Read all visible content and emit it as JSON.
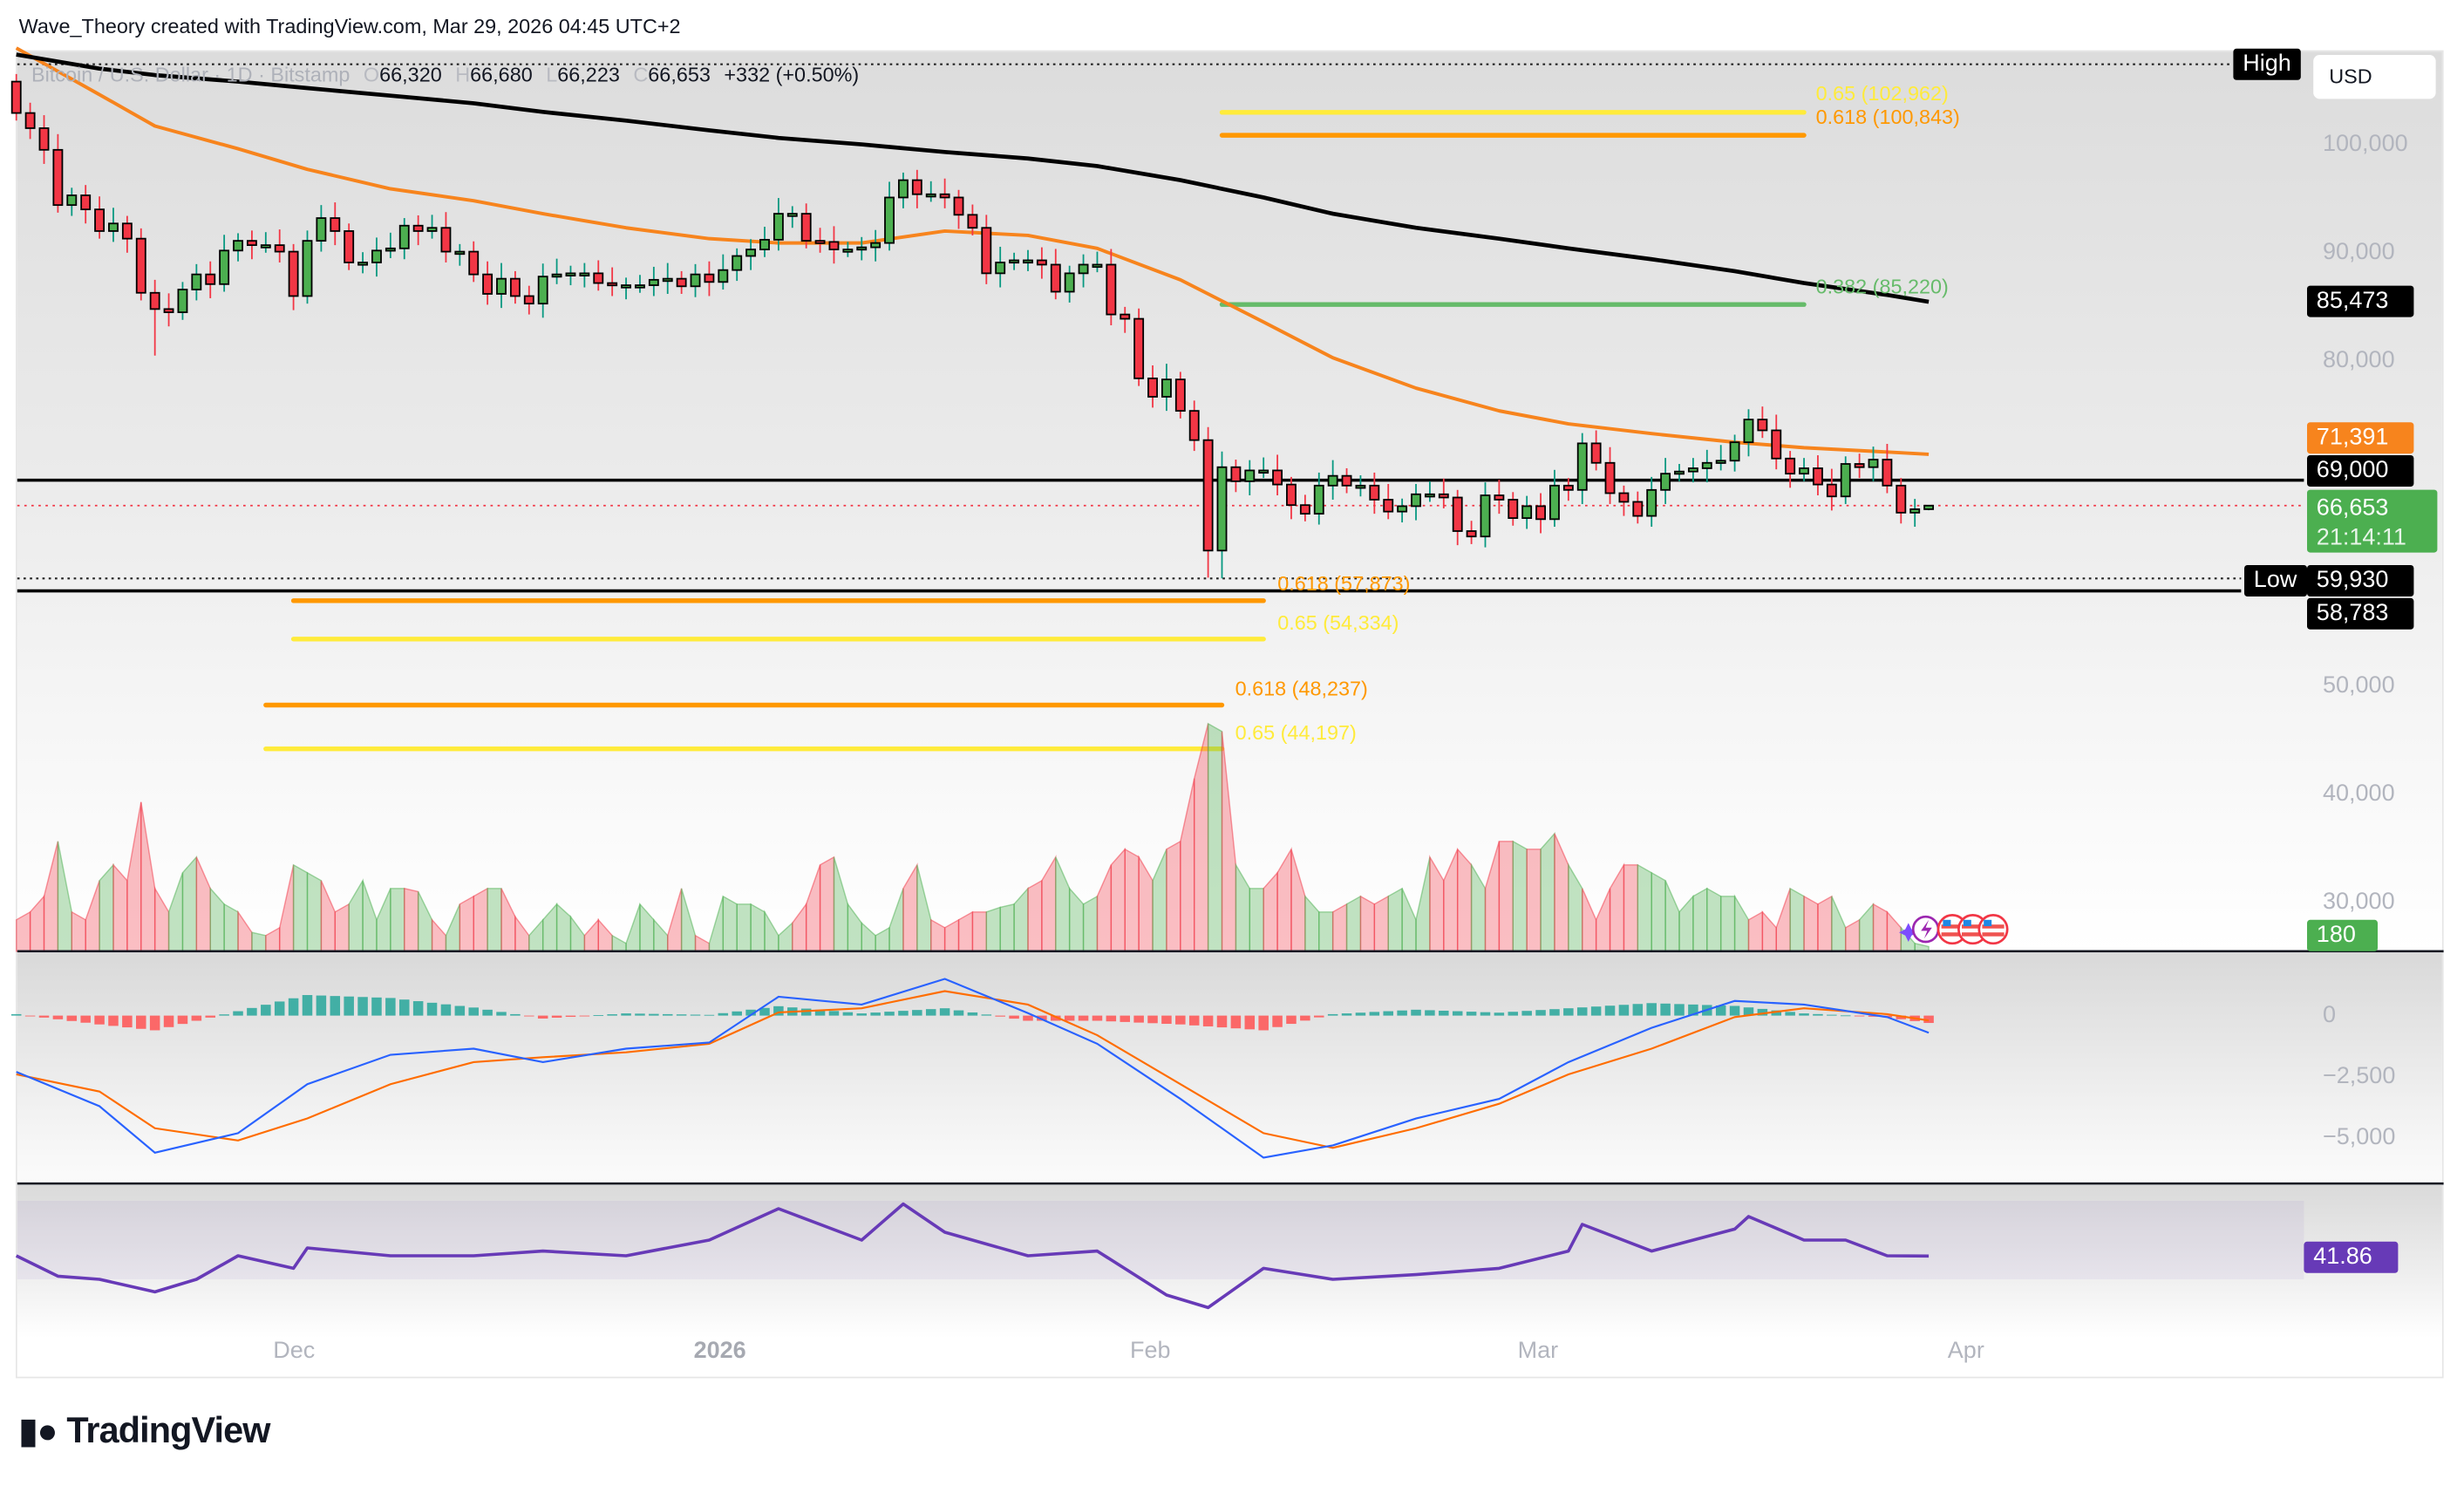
{
  "credit": "Wave_Theory created with TradingView.com, Mar 29, 2026 04:45 UTC+2",
  "legend": {
    "symbol": "Bitcoin / U.S. Dollar · 1D · Bitstamp",
    "o_label": "O",
    "o": "66,320",
    "h_label": "H",
    "h": "66,680",
    "l_label": "L",
    "l": "66,223",
    "c_label": "C",
    "c": "66,653",
    "change": "+332 (+0.50%)"
  },
  "currency_button": "USD",
  "markers": {
    "high": "High",
    "low": "Low"
  },
  "price_axis": [
    "100,000",
    "90,000",
    "80,000",
    "50,000",
    "40,000",
    "30,000"
  ],
  "macd_axis": [
    "0",
    "−2,500",
    "−5,000"
  ],
  "time_axis": [
    "Dec",
    "2026",
    "Feb",
    "Mar",
    "Apr"
  ],
  "badges": {
    "ma200": "85,473",
    "ma50": "71,391",
    "level": "69,000",
    "last_price": "66,653",
    "countdown": "21:14:11",
    "low_value": "59,930",
    "support": "58,783",
    "volume": "180",
    "rsi": "41.86"
  },
  "colors": {
    "up": "#4caf50",
    "down": "#f23645",
    "up_wick": "#089981",
    "ma50": "#f7841d",
    "ma200": "#000000",
    "fib_618": "#ff9800",
    "fib_65": "#ffeb3b",
    "fib_382": "#66bb6a",
    "macd": "#2962ff",
    "signal": "#ff6d00",
    "rsi": "#673ab7"
  },
  "footer_logo": "TradingView",
  "chart_data": {
    "type": "candlestick",
    "symbol": "Bitcoin / U.S. Dollar · 1D · Bitstamp",
    "ylim": [
      30000,
      107000
    ],
    "dates": [
      "2025-11-11",
      "2025-11-12",
      "2025-11-13",
      "2025-11-14",
      "2025-11-15",
      "2025-11-16",
      "2025-11-17",
      "2025-11-18",
      "2025-11-19",
      "2025-11-20",
      "2025-11-21",
      "2025-11-22",
      "2025-11-23",
      "2025-11-24",
      "2025-11-25",
      "2025-11-26",
      "2025-11-27",
      "2025-11-28",
      "2025-11-29",
      "2025-11-30",
      "2025-12-01",
      "2025-12-02",
      "2025-12-03",
      "2025-12-04",
      "2025-12-05",
      "2025-12-06",
      "2025-12-07",
      "2025-12-08",
      "2025-12-09",
      "2025-12-10",
      "2025-12-11",
      "2025-12-12",
      "2025-12-13",
      "2025-12-14",
      "2025-12-15",
      "2025-12-16",
      "2025-12-17",
      "2025-12-18",
      "2025-12-19",
      "2025-12-20",
      "2025-12-21",
      "2025-12-22",
      "2025-12-23",
      "2025-12-24",
      "2025-12-25",
      "2025-12-26",
      "2025-12-27",
      "2025-12-28",
      "2025-12-29",
      "2025-12-30",
      "2025-12-31",
      "2026-01-01",
      "2026-01-02",
      "2026-01-03",
      "2026-01-04",
      "2026-01-05",
      "2026-01-06",
      "2026-01-07",
      "2026-01-08",
      "2026-01-09",
      "2026-01-10",
      "2026-01-11",
      "2026-01-12",
      "2026-01-13",
      "2026-01-14",
      "2026-01-15",
      "2026-01-16",
      "2026-01-17",
      "2026-01-18",
      "2026-01-19",
      "2026-01-20",
      "2026-01-21",
      "2026-01-22",
      "2026-01-23",
      "2026-01-24",
      "2026-01-25",
      "2026-01-26",
      "2026-01-27",
      "2026-01-28",
      "2026-01-29",
      "2026-01-30",
      "2026-01-31",
      "2026-02-01",
      "2026-02-02",
      "2026-02-03",
      "2026-02-04",
      "2026-02-05",
      "2026-02-06",
      "2026-02-07",
      "2026-02-08",
      "2026-02-09",
      "2026-02-10",
      "2026-02-11",
      "2026-02-12",
      "2026-02-13",
      "2026-02-14",
      "2026-02-15",
      "2026-02-16",
      "2026-02-17",
      "2026-02-18",
      "2026-02-19",
      "2026-02-20",
      "2026-02-21",
      "2026-02-22",
      "2026-02-23",
      "2026-02-24",
      "2026-02-25",
      "2026-02-26",
      "2026-02-27",
      "2026-02-28",
      "2026-03-01",
      "2026-03-02",
      "2026-03-03",
      "2026-03-04",
      "2026-03-05",
      "2026-03-06",
      "2026-03-07",
      "2026-03-08",
      "2026-03-09",
      "2026-03-10",
      "2026-03-11",
      "2026-03-12",
      "2026-03-13",
      "2026-03-14",
      "2026-03-15",
      "2026-03-16",
      "2026-03-17",
      "2026-03-18",
      "2026-03-19",
      "2026-03-20",
      "2026-03-21",
      "2026-03-22",
      "2026-03-23",
      "2026-03-24",
      "2026-03-25",
      "2026-03-26",
      "2026-03-27",
      "2026-03-28",
      "2026-03-29"
    ],
    "close": [
      102900,
      101500,
      99500,
      94400,
      95300,
      94000,
      92000,
      92700,
      91300,
      86300,
      84800,
      84500,
      86600,
      88000,
      87100,
      90200,
      91100,
      90700,
      90700,
      90100,
      86000,
      91100,
      93200,
      92000,
      89100,
      89100,
      90200,
      90400,
      92500,
      92000,
      92300,
      90100,
      90100,
      88000,
      86200,
      87600,
      86000,
      85300,
      87800,
      88000,
      88100,
      88100,
      87200,
      87000,
      87000,
      87000,
      87500,
      87600,
      86900,
      88000,
      87300,
      88400,
      89700,
      90300,
      91200,
      93600,
      93600,
      91100,
      91000,
      90300,
      90300,
      90500,
      90900,
      95100,
      96700,
      95400,
      95400,
      95100,
      93500,
      92300,
      88100,
      89100,
      89300,
      89300,
      88900,
      86400,
      88100,
      88900,
      88900,
      84300,
      83900,
      78400,
      76700,
      78300,
      75400,
      72700,
      62500,
      70200,
      68900,
      69900,
      69900,
      68600,
      66700,
      65900,
      68500,
      69400,
      68500,
      68500,
      67200,
      66100,
      66600,
      67700,
      67700,
      67400,
      64300,
      63800,
      67600,
      67200,
      65500,
      66600,
      65400,
      68500,
      68100,
      72400,
      70600,
      67800,
      67000,
      65700,
      68100,
      69600,
      69800,
      70100,
      70600,
      70800,
      72500,
      74600,
      73600,
      71000,
      69600,
      70100,
      68600,
      67500,
      70500,
      70200,
      70900,
      68500,
      66000,
      66320,
      66653
    ],
    "last_candle": {
      "open": 66320,
      "high": 66680,
      "low": 66223,
      "close": 66653,
      "change": 332,
      "change_pct": 0.5
    },
    "volume": [
      20,
      25,
      35,
      70,
      25,
      20,
      45,
      55,
      45,
      95,
      40,
      25,
      50,
      60,
      40,
      30,
      25,
      12,
      10,
      15,
      55,
      50,
      45,
      25,
      30,
      45,
      20,
      40,
      40,
      38,
      20,
      10,
      30,
      35,
      40,
      40,
      22,
      10,
      20,
      30,
      22,
      10,
      20,
      10,
      5,
      30,
      20,
      10,
      40,
      10,
      5,
      35,
      30,
      30,
      25,
      10,
      18,
      30,
      55,
      60,
      30,
      18,
      10,
      15,
      40,
      55,
      20,
      15,
      20,
      25,
      25,
      28,
      30,
      40,
      45,
      60,
      40,
      30,
      35,
      55,
      65,
      60,
      45,
      65,
      70,
      110,
      145,
      140,
      55,
      40,
      40,
      50,
      65,
      35,
      25,
      25,
      30,
      35,
      30,
      35,
      40,
      20,
      60,
      45,
      65,
      55,
      40,
      70,
      70,
      65,
      65,
      75,
      55,
      40,
      20,
      40,
      55,
      55,
      50,
      45,
      25,
      35,
      40,
      35,
      35,
      20,
      25,
      15,
      40,
      35,
      30,
      35,
      15,
      20,
      30,
      25,
      15,
      5,
      3
    ],
    "moving_averages": [
      {
        "color": "#f7841d",
        "last": 71391,
        "points": [
          [
            "2025-11-11",
            108900
          ],
          [
            "2025-11-17",
            104600
          ],
          [
            "2025-11-21",
            101700
          ],
          [
            "2025-11-27",
            99600
          ],
          [
            "2025-12-02",
            97700
          ],
          [
            "2025-12-08",
            95900
          ],
          [
            "2025-12-14",
            94800
          ],
          [
            "2025-12-19",
            93600
          ],
          [
            "2025-12-25",
            92300
          ],
          [
            "2025-12-31",
            91300
          ],
          [
            "2026-01-05",
            90900
          ],
          [
            "2026-01-11",
            90900
          ],
          [
            "2026-01-17",
            92000
          ],
          [
            "2026-01-23",
            91600
          ],
          [
            "2026-01-28",
            90400
          ],
          [
            "2026-02-03",
            87500
          ],
          [
            "2026-02-09",
            83600
          ],
          [
            "2026-02-14",
            80300
          ],
          [
            "2026-02-20",
            77500
          ],
          [
            "2026-02-26",
            75400
          ],
          [
            "2026-03-03",
            74200
          ],
          [
            "2026-03-09",
            73300
          ],
          [
            "2026-03-15",
            72500
          ],
          [
            "2026-03-20",
            72000
          ],
          [
            "2026-03-26",
            71600
          ],
          [
            "2026-03-29",
            71391
          ]
        ]
      },
      {
        "color": "#000000",
        "last": 85473,
        "points": [
          [
            "2025-11-11",
            108300
          ],
          [
            "2025-11-17",
            107000
          ],
          [
            "2025-11-21",
            106400
          ],
          [
            "2025-11-27",
            105800
          ],
          [
            "2025-12-02",
            105200
          ],
          [
            "2025-12-08",
            104500
          ],
          [
            "2025-12-14",
            103800
          ],
          [
            "2025-12-19",
            103000
          ],
          [
            "2025-12-25",
            102200
          ],
          [
            "2025-12-31",
            101300
          ],
          [
            "2026-01-05",
            100600
          ],
          [
            "2026-01-11",
            100000
          ],
          [
            "2026-01-17",
            99300
          ],
          [
            "2026-01-23",
            98700
          ],
          [
            "2026-01-28",
            98000
          ],
          [
            "2026-02-03",
            96700
          ],
          [
            "2026-02-09",
            95100
          ],
          [
            "2026-02-14",
            93600
          ],
          [
            "2026-02-20",
            92300
          ],
          [
            "2026-02-26",
            91300
          ],
          [
            "2026-03-03",
            90400
          ],
          [
            "2026-03-09",
            89400
          ],
          [
            "2026-03-15",
            88300
          ],
          [
            "2026-03-20",
            87200
          ],
          [
            "2026-03-26",
            86100
          ],
          [
            "2026-03-29",
            85473
          ]
        ]
      }
    ],
    "horizontal_levels": [
      {
        "price": 69000,
        "style": "solid"
      },
      {
        "price": 58783,
        "style": "solid"
      },
      {
        "price": 59930,
        "style": "dotted",
        "marker": "Low"
      },
      {
        "price": 107400,
        "style": "dotted",
        "marker": "High"
      },
      {
        "price": 66653,
        "style": "dotted-red"
      }
    ],
    "fib_levels": [
      {
        "label": "0.65 (102,962)",
        "price": 102962,
        "color": "#ffeb3b",
        "start": "2026-02-06",
        "end": "2026-03-20"
      },
      {
        "label": "0.618 (100,843)",
        "price": 100843,
        "color": "#ff9800",
        "start": "2026-02-06",
        "end": "2026-03-20"
      },
      {
        "label": "0.382 (85,220)",
        "price": 85220,
        "color": "#66bb6a",
        "start": "2026-02-06",
        "end": "2026-03-20"
      },
      {
        "label": "0.618 (57,873)",
        "price": 57873,
        "color": "#ff9800",
        "start": "2025-12-01",
        "end": "2026-02-09"
      },
      {
        "label": "0.65 (54,334)",
        "price": 54334,
        "color": "#ffeb3b",
        "start": "2025-12-01",
        "end": "2026-02-09"
      },
      {
        "label": "0.618 (48,237)",
        "price": 48237,
        "color": "#ff9800",
        "start": "2025-11-29",
        "end": "2026-02-06"
      },
      {
        "label": "0.65 (44,197)",
        "price": 44197,
        "color": "#ffeb3b",
        "start": "2025-11-29",
        "end": "2026-02-06"
      }
    ],
    "macd": {
      "yticks": [
        0,
        -2500,
        -5000
      ],
      "macd_line": [
        [
          "2025-11-11",
          -2300
        ],
        [
          "2025-11-17",
          -3700
        ],
        [
          "2025-11-21",
          -5600
        ],
        [
          "2025-11-27",
          -4800
        ],
        [
          "2025-12-02",
          -2800
        ],
        [
          "2025-12-08",
          -1600
        ],
        [
          "2025-12-14",
          -1350
        ],
        [
          "2025-12-19",
          -1900
        ],
        [
          "2025-12-25",
          -1350
        ],
        [
          "2025-12-31",
          -1100
        ],
        [
          "2026-01-05",
          770
        ],
        [
          "2026-01-11",
          450
        ],
        [
          "2026-01-17",
          1500
        ],
        [
          "2026-01-23",
          100
        ],
        [
          "2026-01-28",
          -1150
        ],
        [
          "2026-02-03",
          -3400
        ],
        [
          "2026-02-09",
          -5800
        ],
        [
          "2026-02-14",
          -5300
        ],
        [
          "2026-02-20",
          -4200
        ],
        [
          "2026-02-26",
          -3400
        ],
        [
          "2026-03-03",
          -1900
        ],
        [
          "2026-03-09",
          -500
        ],
        [
          "2026-03-15",
          600
        ],
        [
          "2026-03-20",
          450
        ],
        [
          "2026-03-26",
          -60
        ],
        [
          "2026-03-29",
          -700
        ]
      ],
      "signal_line": [
        [
          "2025-11-11",
          -2400
        ],
        [
          "2025-11-17",
          -3100
        ],
        [
          "2025-11-21",
          -4600
        ],
        [
          "2025-11-27",
          -5100
        ],
        [
          "2025-12-02",
          -4200
        ],
        [
          "2025-12-08",
          -2800
        ],
        [
          "2025-12-14",
          -1900
        ],
        [
          "2025-12-19",
          -1700
        ],
        [
          "2025-12-25",
          -1500
        ],
        [
          "2025-12-31",
          -1150
        ],
        [
          "2026-01-05",
          130
        ],
        [
          "2026-01-11",
          300
        ],
        [
          "2026-01-17",
          1000
        ],
        [
          "2026-01-23",
          450
        ],
        [
          "2026-01-28",
          -800
        ],
        [
          "2026-02-03",
          -2800
        ],
        [
          "2026-02-09",
          -4800
        ],
        [
          "2026-02-14",
          -5400
        ],
        [
          "2026-02-20",
          -4600
        ],
        [
          "2026-02-26",
          -3600
        ],
        [
          "2026-03-03",
          -2400
        ],
        [
          "2026-03-09",
          -1350
        ],
        [
          "2026-03-15",
          -60
        ],
        [
          "2026-03-20",
          300
        ],
        [
          "2026-03-26",
          60
        ],
        [
          "2026-03-29",
          -200
        ]
      ]
    },
    "rsi": {
      "value": 41.86,
      "band": [
        30,
        70
      ],
      "points": [
        [
          "2025-11-11",
          42
        ],
        [
          "2025-11-14",
          31.6
        ],
        [
          "2025-11-17",
          30
        ],
        [
          "2025-11-21",
          23.6
        ],
        [
          "2025-11-24",
          30
        ],
        [
          "2025-11-27",
          42
        ],
        [
          "2025-12-01",
          35.6
        ],
        [
          "2025-12-02",
          46
        ],
        [
          "2025-12-08",
          42
        ],
        [
          "2025-12-14",
          42
        ],
        [
          "2025-12-19",
          44.4
        ],
        [
          "2025-12-25",
          42
        ],
        [
          "2025-12-31",
          50
        ],
        [
          "2026-01-05",
          66
        ],
        [
          "2026-01-11",
          50
        ],
        [
          "2026-01-14",
          68.4
        ],
        [
          "2026-01-17",
          54
        ],
        [
          "2026-01-23",
          42
        ],
        [
          "2026-01-28",
          44.4
        ],
        [
          "2026-02-02",
          22
        ],
        [
          "2026-02-05",
          15.6
        ],
        [
          "2026-02-09",
          35.6
        ],
        [
          "2026-02-14",
          30
        ],
        [
          "2026-02-20",
          32.4
        ],
        [
          "2026-02-26",
          35.6
        ],
        [
          "2026-03-03",
          44.4
        ],
        [
          "2026-03-04",
          58
        ],
        [
          "2026-03-09",
          44.4
        ],
        [
          "2026-03-15",
          55.6
        ],
        [
          "2026-03-16",
          62
        ],
        [
          "2026-03-20",
          50
        ],
        [
          "2026-03-23",
          50
        ],
        [
          "2026-03-26",
          42
        ],
        [
          "2026-03-29",
          41.86
        ]
      ]
    }
  }
}
